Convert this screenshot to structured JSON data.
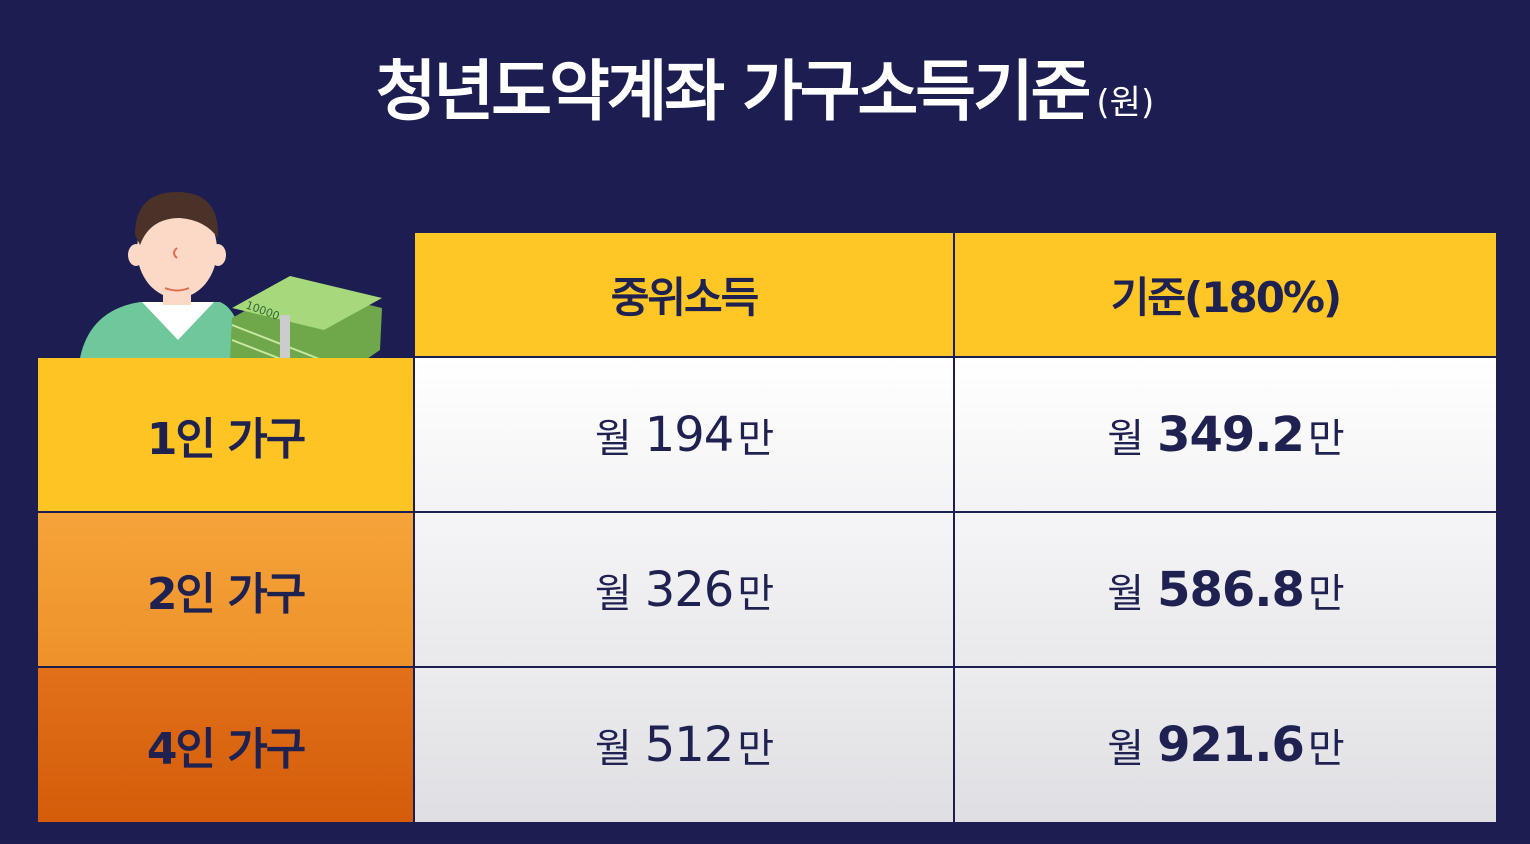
{
  "title": {
    "text": "청년도약계좌 가구소득기준",
    "unit": "(원)"
  },
  "table": {
    "headers": [
      "중위소득",
      "기준(180%)"
    ],
    "rows": [
      {
        "label": "1인 가구",
        "median": {
          "prefix": "월",
          "value": "194",
          "suffix": "만"
        },
        "criteria": {
          "prefix": "월",
          "value": "349.2",
          "suffix": "만"
        }
      },
      {
        "label": "2인 가구",
        "median": {
          "prefix": "월",
          "value": "326",
          "suffix": "만"
        },
        "criteria": {
          "prefix": "월",
          "value": "586.8",
          "suffix": "만"
        }
      },
      {
        "label": "4인 가구",
        "median": {
          "prefix": "월",
          "value": "512",
          "suffix": "만"
        },
        "criteria": {
          "prefix": "월",
          "value": "921.6",
          "suffix": "만"
        }
      }
    ]
  },
  "illustration": {
    "banknote_text": "10000"
  },
  "colors": {
    "background": "#1c1d50",
    "header": "#fec726",
    "row1": "#fdc424",
    "row2": "#f29a2f",
    "row3": "#d9620c",
    "text": "#1f2150"
  }
}
